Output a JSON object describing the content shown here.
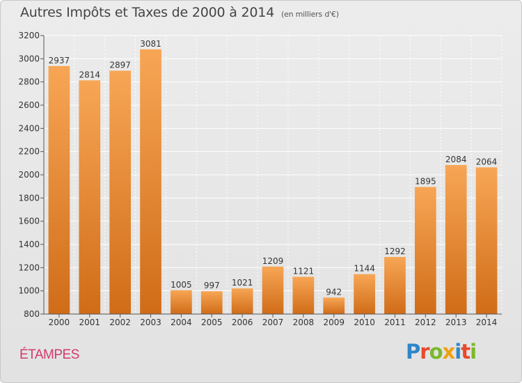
{
  "header": {
    "title": "Autres Impôts et Taxes de 2000 à 2014",
    "subtitle": "(en milliers d'€)"
  },
  "footer": {
    "town": "ÉTAMPES",
    "logo": "Proxiti",
    "logo_colors": [
      "#2f86c8",
      "#e8492c",
      "#7ab929",
      "#f0a010",
      "#2f86c8",
      "#e8492c",
      "#7ab929"
    ]
  },
  "chart_data": {
    "type": "bar",
    "title": "Autres Impôts et Taxes de 2000 à 2014",
    "subtitle": "(en milliers d'€)",
    "xlabel": "",
    "ylabel": "",
    "categories": [
      "2000",
      "2001",
      "2002",
      "2003",
      "2004",
      "2005",
      "2006",
      "2007",
      "2008",
      "2009",
      "2010",
      "2011",
      "2012",
      "2013",
      "2014"
    ],
    "values": [
      2937,
      2814,
      2897,
      3081,
      1005,
      997,
      1021,
      1209,
      1121,
      942,
      1144,
      1292,
      1895,
      2084,
      2064
    ],
    "data_labels": [
      "2937",
      "2814",
      "2897",
      "3081",
      "1005",
      "997",
      "1021",
      "1209",
      "1121",
      "942",
      "1144",
      "1292",
      "1895",
      "2084",
      "2064"
    ],
    "ylim": [
      800,
      3200
    ],
    "yticks": [
      "800",
      "1000",
      "1200",
      "1400",
      "1600",
      "1800",
      "2000",
      "2200",
      "2400",
      "2600",
      "2800",
      "3000",
      "3200"
    ],
    "grid": true,
    "legend": "none",
    "colors": {
      "bar_top": "#f7a655",
      "bar_bottom": "#d06c18",
      "grid": "#ffffff",
      "axis": "#555555"
    }
  }
}
